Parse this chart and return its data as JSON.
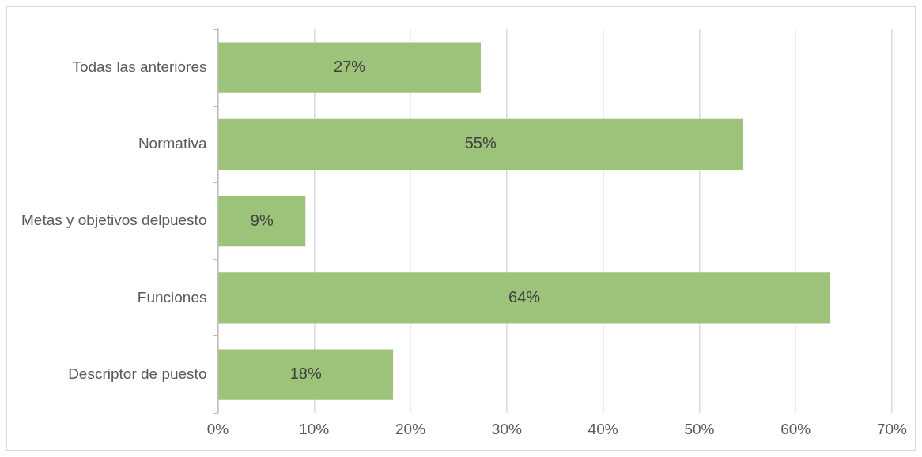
{
  "chart_data": {
    "type": "bar",
    "orientation": "horizontal",
    "categories": [
      "Todas las anteriores",
      "Normativa",
      "Metas y objetivos delpuesto",
      "Funciones",
      "Descriptor de puesto"
    ],
    "values": [
      27.3,
      54.5,
      9.1,
      63.6,
      18.2
    ],
    "value_labels": [
      "27%",
      "55%",
      "9%",
      "64%",
      "18%"
    ],
    "color": "#9dc37a",
    "xlim": [
      0,
      70
    ],
    "xticks": [
      {
        "value": 0,
        "label": "0%"
      },
      {
        "value": 10,
        "label": "10%"
      },
      {
        "value": 20,
        "label": "20%"
      },
      {
        "value": 30,
        "label": "30%"
      },
      {
        "value": 40,
        "label": "40%"
      },
      {
        "value": 50,
        "label": "50%"
      },
      {
        "value": 60,
        "label": "60%"
      },
      {
        "value": 70,
        "label": "70%"
      }
    ],
    "grid": "x"
  }
}
